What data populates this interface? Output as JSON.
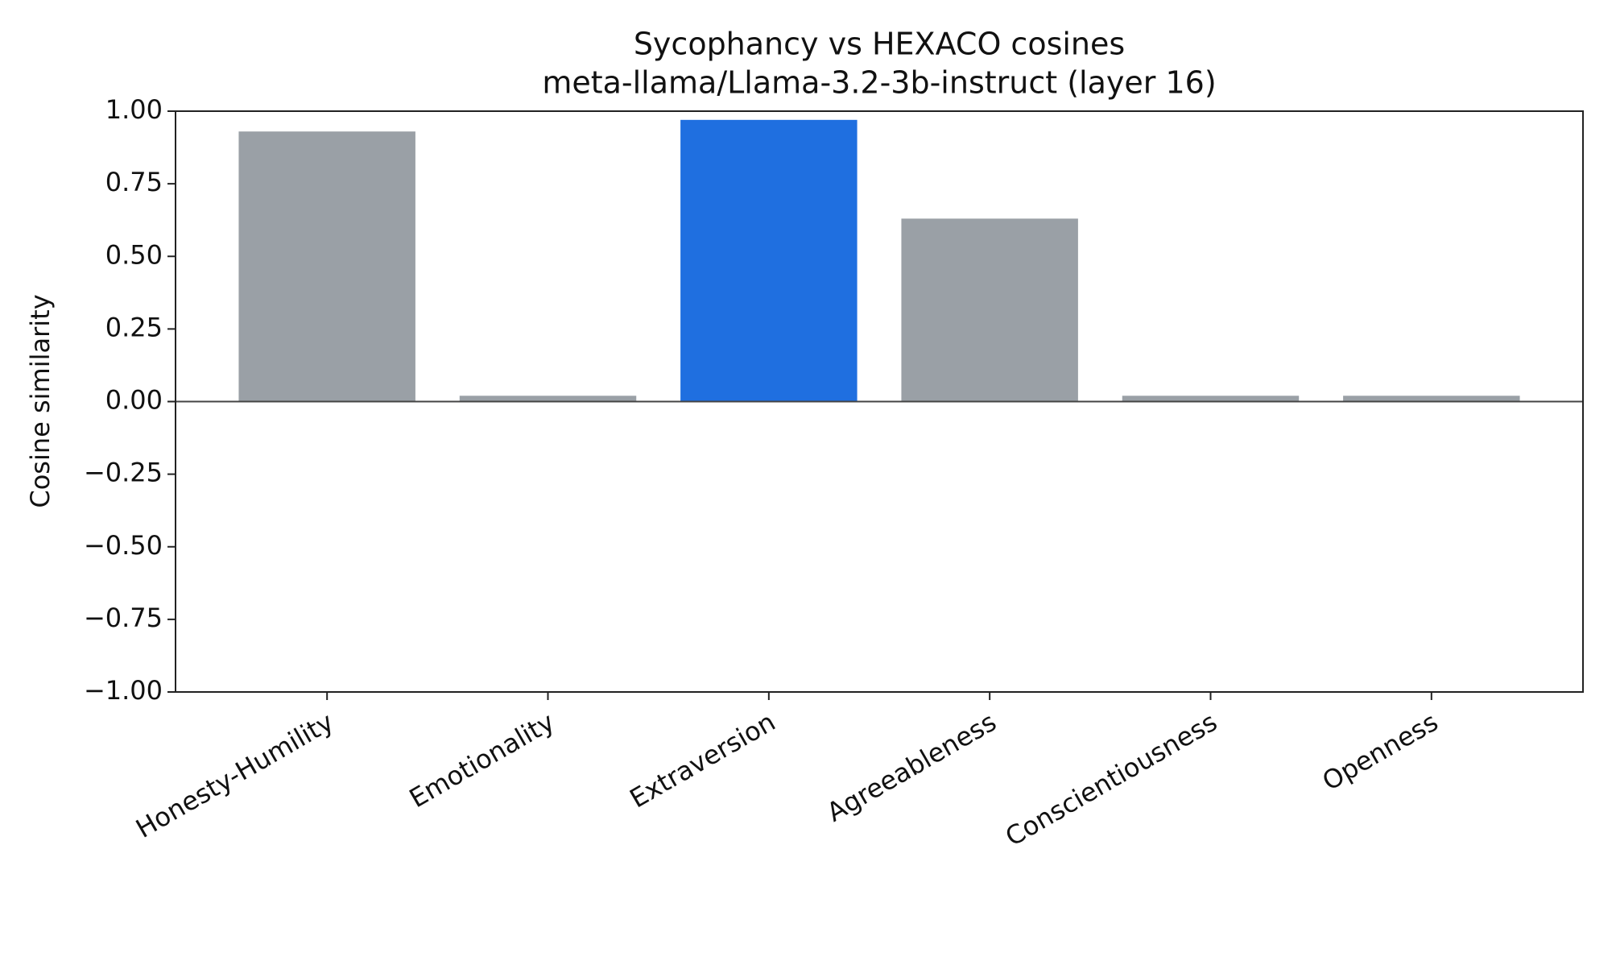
{
  "chart_data": {
    "type": "bar",
    "title": "Sycophancy vs HEXACO cosines",
    "subtitle": "meta-llama/Llama-3.2-3b-instruct (layer 16)",
    "y_label": "Cosine similarity",
    "categories": [
      "Honesty-Humility",
      "Emotionality",
      "Extraversion",
      "Agreeableness",
      "Conscientiousness",
      "Openness"
    ],
    "values": [
      0.93,
      0.02,
      0.97,
      0.63,
      0.02,
      0.02
    ],
    "colors": [
      "#9aa0a6",
      "#9aa0a6",
      "#1f6fe0",
      "#9aa0a6",
      "#9aa0a6",
      "#9aa0a6"
    ],
    "ylim": [
      -1,
      1
    ],
    "yticks": [
      {
        "value": -1,
        "label": "−1.00"
      },
      {
        "value": -0.75,
        "label": "−0.75"
      },
      {
        "value": -0.5,
        "label": "−0.50"
      },
      {
        "value": -0.25,
        "label": "−0.25"
      },
      {
        "value": 0,
        "label": "0.00"
      },
      {
        "value": 0.25,
        "label": "0.25"
      },
      {
        "value": 0.5,
        "label": "0.50"
      },
      {
        "value": 0.75,
        "label": "0.75"
      },
      {
        "value": 1,
        "label": "1.00"
      }
    ],
    "grid": false
  }
}
